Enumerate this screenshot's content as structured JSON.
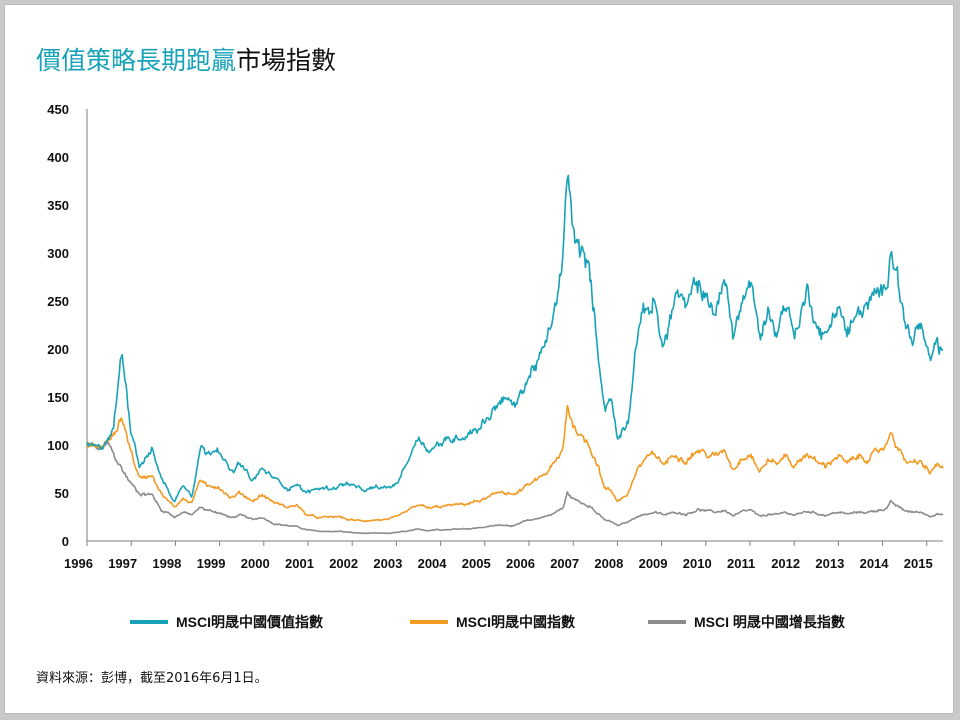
{
  "header": {
    "title_highlight": "價值策略長期跑贏",
    "title_rest": "市場指數"
  },
  "colors": {
    "value": "#17a2b8",
    "index": "#f39a23",
    "growth": "#8c8c8c",
    "axis": "#7f7f7f"
  },
  "chart_data": {
    "type": "line",
    "title": "價值策略長期跑贏市場指數",
    "xlabel": "",
    "ylabel": "",
    "xlim": [
      1996.0,
      2015.6
    ],
    "ylim": [
      0,
      450
    ],
    "y_ticks": [
      0,
      50,
      100,
      150,
      200,
      250,
      300,
      350,
      400,
      450
    ],
    "x_tick_labels": [
      "1996",
      "1997",
      "1998",
      "1999",
      "2000",
      "2001",
      "2002",
      "2003",
      "2004",
      "2005",
      "2006",
      "2007",
      "2008",
      "2009",
      "2010",
      "2011",
      "2012",
      "2013",
      "2014",
      "2015"
    ],
    "grid": false,
    "legend_position": "bottom",
    "series": [
      {
        "name": "MSCI明晟中國價值指數",
        "key": "value",
        "x": [
          1996.0,
          1996.3,
          1996.5,
          1996.6,
          1996.8,
          1997.0,
          1997.2,
          1997.5,
          1997.7,
          1997.85,
          1998.0,
          1998.2,
          1998.4,
          1998.6,
          1998.75,
          1999.0,
          1999.3,
          1999.5,
          1999.8,
          2000.0,
          2000.3,
          2000.6,
          2000.8,
          2001.0,
          2001.3,
          2001.6,
          2001.8,
          2002.0,
          2002.3,
          2002.6,
          2002.9,
          2003.1,
          2003.3,
          2003.6,
          2003.8,
          2004.0,
          2004.3,
          2004.6,
          2004.8,
          2005.0,
          2005.2,
          2005.5,
          2005.8,
          2006.0,
          2006.2,
          2006.5,
          2006.65,
          2006.8,
          2006.9,
          2007.0,
          2007.1,
          2007.3,
          2007.5,
          2007.7,
          2007.85,
          2008.0,
          2008.15,
          2008.4,
          2008.6,
          2008.8,
          2009.0,
          2009.2,
          2009.5,
          2009.7,
          2010.0,
          2010.2,
          2010.4,
          2010.6,
          2010.8,
          2011.0,
          2011.2,
          2011.4,
          2011.6,
          2011.8,
          2012.0,
          2012.2,
          2012.5,
          2012.7,
          2012.9,
          2013.2,
          2013.4,
          2013.7,
          2013.9,
          2014.1,
          2014.3,
          2014.4,
          2014.55,
          2014.7,
          2014.9,
          2015.1,
          2015.3,
          2015.45,
          2015.6
        ],
        "values": [
          100,
          95,
          110,
          115,
          198,
          120,
          80,
          95,
          65,
          55,
          40,
          60,
          48,
          100,
          90,
          100,
          70,
          80,
          62,
          75,
          65,
          55,
          60,
          50,
          55,
          55,
          58,
          60,
          52,
          55,
          55,
          60,
          80,
          110,
          95,
          100,
          105,
          110,
          115,
          120,
          130,
          150,
          140,
          160,
          180,
          200,
          230,
          260,
          290,
          385,
          330,
          300,
          280,
          200,
          140,
          150,
          105,
          130,
          220,
          240,
          250,
          200,
          260,
          240,
          270,
          250,
          240,
          270,
          215,
          250,
          270,
          210,
          240,
          220,
          250,
          215,
          260,
          230,
          210,
          250,
          215,
          240,
          245,
          255,
          260,
          315,
          285,
          230,
          210,
          225,
          180,
          205,
          195
        ]
      },
      {
        "name": "MSCI明晟中國指數",
        "key": "index",
        "x": [
          1996.0,
          1996.3,
          1996.5,
          1996.6,
          1996.8,
          1997.0,
          1997.2,
          1997.5,
          1997.7,
          1997.85,
          1998.0,
          1998.2,
          1998.4,
          1998.6,
          1998.75,
          1999.0,
          1999.3,
          1999.5,
          1999.8,
          2000.0,
          2000.3,
          2000.6,
          2000.8,
          2001.0,
          2001.3,
          2001.6,
          2001.8,
          2002.0,
          2002.3,
          2002.6,
          2002.9,
          2003.1,
          2003.3,
          2003.6,
          2003.8,
          2004.0,
          2004.3,
          2004.6,
          2004.8,
          2005.0,
          2005.2,
          2005.5,
          2005.8,
          2006.0,
          2006.2,
          2006.5,
          2006.65,
          2006.8,
          2006.9,
          2007.0,
          2007.1,
          2007.3,
          2007.5,
          2007.7,
          2007.85,
          2008.0,
          2008.15,
          2008.4,
          2008.6,
          2008.8,
          2009.0,
          2009.2,
          2009.5,
          2009.7,
          2010.0,
          2010.2,
          2010.4,
          2010.6,
          2010.8,
          2011.0,
          2011.2,
          2011.4,
          2011.6,
          2011.8,
          2012.0,
          2012.2,
          2012.5,
          2012.7,
          2012.9,
          2013.2,
          2013.4,
          2013.7,
          2013.9,
          2014.1,
          2014.3,
          2014.4,
          2014.55,
          2014.7,
          2014.9,
          2015.1,
          2015.3,
          2015.45,
          2015.6
        ],
        "values": [
          100,
          97,
          105,
          108,
          130,
          95,
          65,
          70,
          50,
          42,
          35,
          45,
          40,
          65,
          55,
          58,
          45,
          50,
          42,
          48,
          40,
          35,
          38,
          28,
          24,
          25,
          25,
          22,
          21,
          22,
          22,
          25,
          30,
          38,
          34,
          35,
          37,
          38,
          40,
          42,
          45,
          52,
          48,
          55,
          60,
          70,
          78,
          85,
          95,
          142,
          125,
          110,
          100,
          80,
          55,
          52,
          42,
          50,
          75,
          85,
          90,
          80,
          92,
          85,
          95,
          90,
          88,
          95,
          75,
          88,
          92,
          72,
          85,
          80,
          90,
          78,
          92,
          82,
          78,
          90,
          80,
          88,
          86,
          92,
          100,
          115,
          100,
          85,
          80,
          82,
          70,
          80,
          75
        ]
      },
      {
        "name": "MSCI 明晟中國增長指數",
        "key": "growth",
        "x": [
          1996.0,
          1996.3,
          1996.5,
          1996.6,
          1996.8,
          1997.0,
          1997.2,
          1997.5,
          1997.7,
          1997.85,
          1998.0,
          1998.2,
          1998.4,
          1998.6,
          1998.75,
          1999.0,
          1999.3,
          1999.5,
          1999.8,
          2000.0,
          2000.3,
          2000.6,
          2000.8,
          2001.0,
          2001.3,
          2001.6,
          2001.8,
          2002.0,
          2002.3,
          2002.6,
          2002.9,
          2003.1,
          2003.3,
          2003.6,
          2003.8,
          2004.0,
          2004.3,
          2004.6,
          2004.8,
          2005.0,
          2005.2,
          2005.5,
          2005.8,
          2006.0,
          2006.2,
          2006.5,
          2006.65,
          2006.8,
          2006.9,
          2007.0,
          2007.1,
          2007.3,
          2007.5,
          2007.7,
          2007.85,
          2008.0,
          2008.15,
          2008.4,
          2008.6,
          2008.8,
          2009.0,
          2009.2,
          2009.5,
          2009.7,
          2010.0,
          2010.2,
          2010.4,
          2010.6,
          2010.8,
          2011.0,
          2011.2,
          2011.4,
          2011.6,
          2011.8,
          2012.0,
          2012.2,
          2012.5,
          2012.7,
          2012.9,
          2013.2,
          2013.4,
          2013.7,
          2013.9,
          2014.1,
          2014.3,
          2014.4,
          2014.55,
          2014.7,
          2014.9,
          2015.1,
          2015.3,
          2015.45,
          2015.6
        ],
        "values": [
          100,
          95,
          100,
          90,
          75,
          60,
          50,
          48,
          32,
          30,
          25,
          30,
          27,
          35,
          32,
          30,
          24,
          27,
          22,
          25,
          18,
          16,
          15,
          12,
          10,
          10,
          10,
          9,
          8,
          8,
          8,
          9,
          10,
          12,
          11,
          12,
          12,
          13,
          13,
          14,
          15,
          17,
          16,
          20,
          22,
          26,
          28,
          32,
          34,
          50,
          45,
          40,
          38,
          28,
          22,
          20,
          16,
          20,
          26,
          28,
          30,
          27,
          30,
          28,
          33,
          31,
          30,
          32,
          26,
          30,
          32,
          25,
          28,
          27,
          30,
          27,
          31,
          29,
          27,
          30,
          28,
          30,
          30,
          32,
          34,
          40,
          36,
          32,
          30,
          30,
          26,
          29,
          27
        ]
      }
    ]
  },
  "legend": {
    "value_label": "MSCI明晟中國價值指數",
    "index_label": "MSCI明晟中國指數",
    "growth_label": "MSCI 明晟中國增長指數"
  },
  "footer": {
    "source": "資料來源：彭博，截至2016年6月1日。"
  }
}
